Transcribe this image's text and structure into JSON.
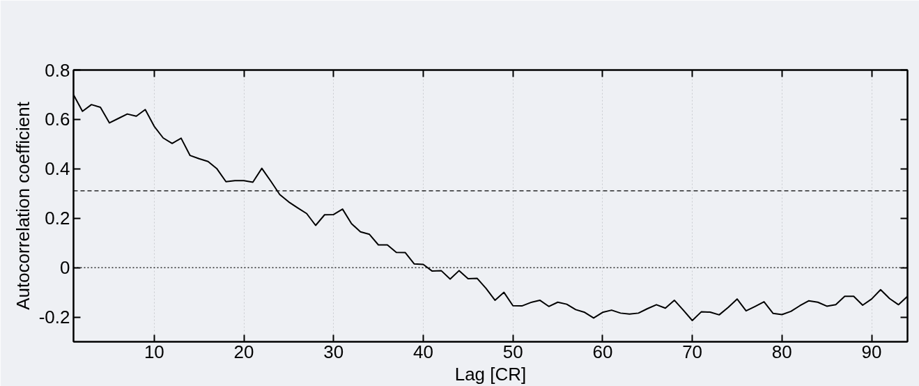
{
  "chart_data": {
    "type": "line",
    "xlabel": "Lag [CR]",
    "ylabel": "Autocorrelation coefficient",
    "x": [
      1,
      2,
      3,
      4,
      5,
      6,
      7,
      8,
      9,
      10,
      11,
      12,
      13,
      14,
      15,
      16,
      17,
      18,
      19,
      20,
      21,
      22,
      23,
      24,
      25,
      26,
      27,
      28,
      29,
      30,
      31,
      32,
      33,
      34,
      35,
      36,
      37,
      38,
      39,
      40,
      41,
      42,
      43,
      44,
      45,
      46,
      47,
      48,
      49,
      50,
      51,
      52,
      53,
      54,
      55,
      56,
      57,
      58,
      59,
      60,
      61,
      62,
      63,
      64,
      65,
      66,
      67,
      68,
      69,
      70,
      71,
      72,
      73,
      74,
      75,
      76,
      77,
      78,
      79,
      80,
      81,
      82,
      83,
      84,
      85,
      86,
      87,
      88,
      89,
      90,
      91,
      92,
      93,
      94
    ],
    "series": [
      {
        "color": "#000000",
        "values": [
          0.7,
          0.633,
          0.66,
          0.649,
          0.586,
          0.604,
          0.622,
          0.613,
          0.64,
          0.572,
          0.525,
          0.503,
          0.524,
          0.454,
          0.441,
          0.43,
          0.4,
          0.348,
          0.352,
          0.352,
          0.346,
          0.402,
          0.35,
          0.296,
          0.266,
          0.242,
          0.219,
          0.171,
          0.214,
          0.215,
          0.237,
          0.178,
          0.145,
          0.135,
          0.092,
          0.092,
          0.062,
          0.061,
          0.015,
          0.013,
          -0.014,
          -0.012,
          -0.046,
          -0.012,
          -0.045,
          -0.043,
          -0.084,
          -0.132,
          -0.1,
          -0.154,
          -0.155,
          -0.141,
          -0.132,
          -0.157,
          -0.14,
          -0.148,
          -0.17,
          -0.181,
          -0.204,
          -0.181,
          -0.172,
          -0.184,
          -0.188,
          -0.184,
          -0.166,
          -0.15,
          -0.164,
          -0.132,
          -0.172,
          -0.214,
          -0.179,
          -0.18,
          -0.191,
          -0.161,
          -0.127,
          -0.175,
          -0.157,
          -0.138,
          -0.185,
          -0.19,
          -0.177,
          -0.154,
          -0.134,
          -0.14,
          -0.156,
          -0.15,
          -0.116,
          -0.116,
          -0.152,
          -0.127,
          -0.089,
          -0.125,
          -0.15,
          -0.116
        ]
      }
    ],
    "xlim": [
      1,
      94
    ],
    "xticks": [
      10,
      20,
      30,
      40,
      50,
      60,
      70,
      80,
      90
    ],
    "ylim": [
      -0.3,
      0.8
    ],
    "yticks": [
      -0.2,
      0,
      0.2,
      0.4,
      0.6,
      0.8
    ],
    "ref_lines": [
      {
        "axis": "y",
        "value": 0.311,
        "line_style": "dashed"
      },
      {
        "axis": "y",
        "value": 0,
        "line_style": "dotted"
      }
    ],
    "grid": "x",
    "marker": "none",
    "line_style": "solid"
  }
}
